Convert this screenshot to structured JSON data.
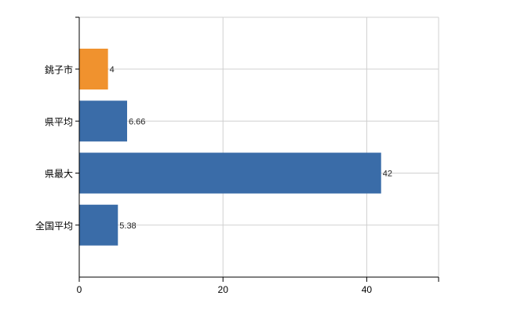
{
  "chart_data": {
    "type": "bar",
    "orientation": "horizontal",
    "categories": [
      "銚子市",
      "県平均",
      "県最大",
      "全国平均"
    ],
    "values": [
      4,
      6.66,
      42,
      5.38
    ],
    "value_labels": [
      "4",
      "6.66",
      "42",
      "5.38"
    ],
    "bar_colors": [
      "#f0922e",
      "#3a6ca8",
      "#3a6ca8",
      "#3a6ca8"
    ],
    "xlim": [
      0,
      50
    ],
    "xticks": [
      0,
      20,
      40
    ],
    "xtick_labels": [
      "0",
      "20",
      "40"
    ],
    "grid": true,
    "title": "",
    "xlabel": "",
    "ylabel": ""
  }
}
